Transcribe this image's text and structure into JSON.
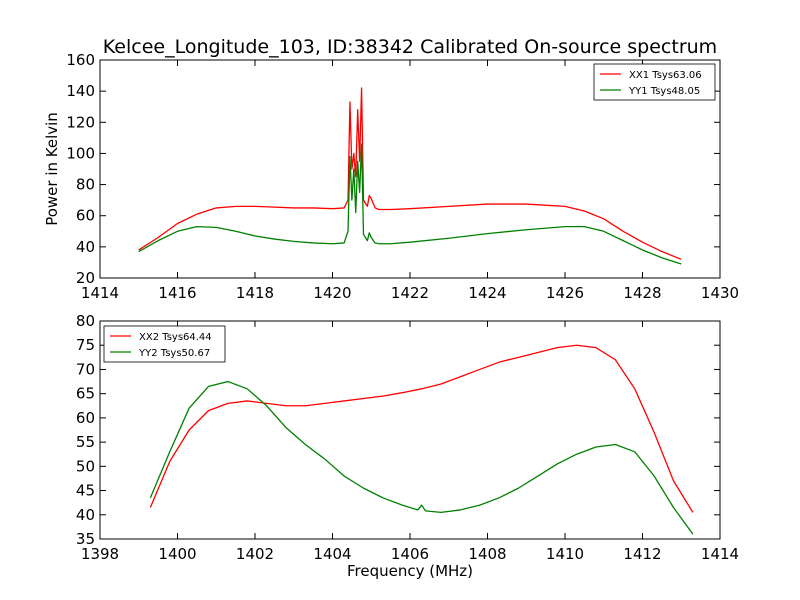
{
  "chart_data": [
    {
      "type": "line",
      "title": "Kelcee_Longitude_103, ID:38342 Calibrated On-source spectrum",
      "xlabel": "",
      "ylabel": "Power in Kelvin",
      "xlim": [
        1414,
        1430
      ],
      "ylim": [
        20,
        160
      ],
      "xticks": [
        "1414",
        "1416",
        "1418",
        "1420",
        "1422",
        "1424",
        "1426",
        "1428",
        "1430"
      ],
      "yticks": [
        "20",
        "40",
        "60",
        "80",
        "100",
        "120",
        "140",
        "160"
      ],
      "grid": false,
      "legend_position": "top-right",
      "series": [
        {
          "name": "XX1 Tsys63.06",
          "color": "#ff0000",
          "x": [
            1415.0,
            1415.5,
            1416.0,
            1416.5,
            1417.0,
            1417.5,
            1418.0,
            1418.5,
            1419.0,
            1419.5,
            1420.0,
            1420.3,
            1420.4,
            1420.45,
            1420.5,
            1420.55,
            1420.6,
            1420.65,
            1420.7,
            1420.75,
            1420.8,
            1420.9,
            1420.95,
            1421.0,
            1421.1,
            1421.2,
            1421.5,
            1422.0,
            1423.0,
            1424.0,
            1425.0,
            1426.0,
            1426.5,
            1427.0,
            1427.5,
            1428.0,
            1428.5,
            1429.0
          ],
          "y": [
            38,
            46,
            55,
            61,
            65,
            66,
            66,
            65.5,
            65,
            65,
            64.5,
            65,
            70,
            133,
            90,
            100,
            85,
            128,
            95,
            142,
            70,
            66,
            73,
            71,
            65,
            64,
            64,
            64.5,
            66,
            67.5,
            67.5,
            66,
            63,
            58,
            50,
            43,
            37,
            32
          ]
        },
        {
          "name": "YY1 Tsys48.05",
          "color": "#008000",
          "x": [
            1415.0,
            1415.5,
            1416.0,
            1416.5,
            1417.0,
            1417.5,
            1418.0,
            1418.5,
            1419.0,
            1419.5,
            1420.0,
            1420.3,
            1420.4,
            1420.45,
            1420.5,
            1420.55,
            1420.6,
            1420.65,
            1420.7,
            1420.75,
            1420.8,
            1420.9,
            1420.95,
            1421.0,
            1421.1,
            1421.2,
            1421.5,
            1422.0,
            1423.0,
            1424.0,
            1425.0,
            1426.0,
            1426.5,
            1427.0,
            1427.5,
            1428.0,
            1428.5,
            1429.0
          ],
          "y": [
            37,
            44,
            50,
            53,
            52.5,
            50,
            47,
            45,
            43.5,
            42.5,
            42,
            42.5,
            50,
            98,
            70,
            90,
            62,
            95,
            75,
            106,
            48,
            44,
            49,
            46,
            42.5,
            42,
            42,
            43,
            45.5,
            48.5,
            51,
            53,
            53,
            50,
            44,
            38,
            33,
            29
          ]
        }
      ]
    },
    {
      "type": "line",
      "title": "",
      "xlabel": "Frequency (MHz)",
      "ylabel": "",
      "xlim": [
        1398,
        1414
      ],
      "ylim": [
        35,
        80
      ],
      "xticks": [
        "1398",
        "1400",
        "1402",
        "1404",
        "1406",
        "1408",
        "1410",
        "1412",
        "1414"
      ],
      "yticks": [
        "35",
        "40",
        "45",
        "50",
        "55",
        "60",
        "65",
        "70",
        "75",
        "80"
      ],
      "grid": false,
      "legend_position": "top-left",
      "series": [
        {
          "name": "XX2 Tsys64.44",
          "color": "#ff0000",
          "x": [
            1399.3,
            1399.8,
            1400.3,
            1400.8,
            1401.3,
            1401.8,
            1402.3,
            1402.8,
            1403.3,
            1403.8,
            1404.3,
            1404.8,
            1405.3,
            1405.8,
            1406.3,
            1406.8,
            1407.3,
            1407.8,
            1408.3,
            1408.8,
            1409.3,
            1409.8,
            1410.3,
            1410.8,
            1411.3,
            1411.8,
            1412.3,
            1412.8,
            1413.3
          ],
          "y": [
            41.5,
            51,
            57.5,
            61.5,
            63,
            63.5,
            63,
            62.5,
            62.5,
            63,
            63.5,
            64,
            64.5,
            65.2,
            66,
            67,
            68.5,
            70,
            71.5,
            72.5,
            73.5,
            74.5,
            75,
            74.5,
            72,
            66,
            57,
            47,
            40.5
          ]
        },
        {
          "name": "YY2 Tsys50.67",
          "color": "#008000",
          "x": [
            1399.3,
            1399.8,
            1400.3,
            1400.8,
            1401.3,
            1401.8,
            1402.3,
            1402.8,
            1403.3,
            1403.8,
            1404.3,
            1404.8,
            1405.3,
            1405.8,
            1406.2,
            1406.3,
            1406.4,
            1406.8,
            1407.3,
            1407.8,
            1408.3,
            1408.8,
            1409.3,
            1409.8,
            1410.3,
            1410.8,
            1411.3,
            1411.8,
            1412.3,
            1412.8,
            1413.3
          ],
          "y": [
            43.5,
            53,
            62,
            66.5,
            67.5,
            66,
            62.5,
            58,
            54.5,
            51.5,
            48,
            45.5,
            43.5,
            42,
            41,
            42,
            40.8,
            40.5,
            41,
            42,
            43.5,
            45.5,
            48,
            50.5,
            52.5,
            54,
            54.5,
            53,
            48,
            41.5,
            36
          ]
        }
      ]
    }
  ]
}
